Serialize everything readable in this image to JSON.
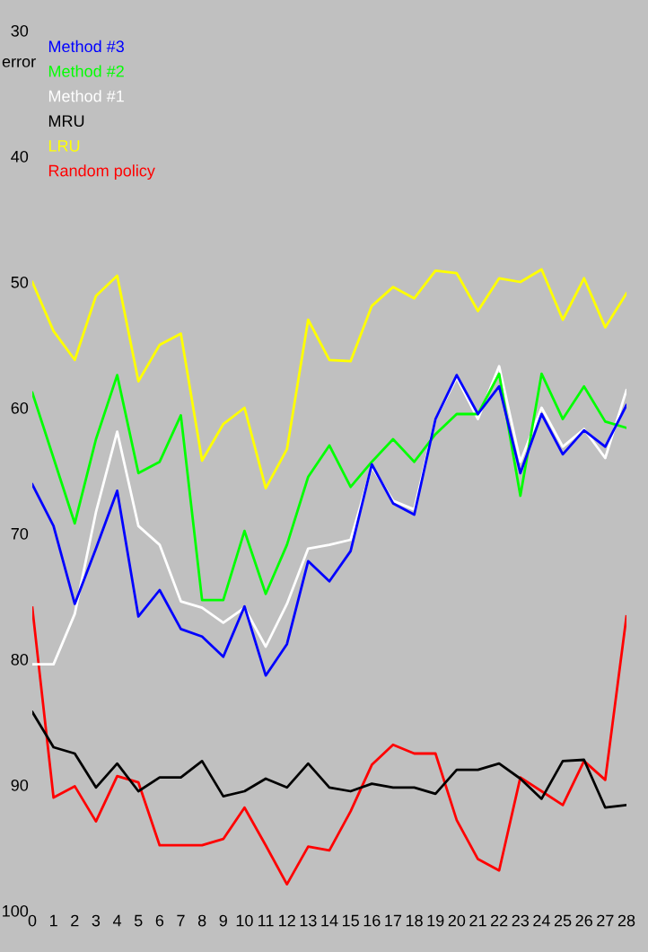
{
  "chart_data": {
    "type": "line",
    "ylabel": "error",
    "x": [
      0,
      1,
      2,
      3,
      4,
      5,
      6,
      7,
      8,
      9,
      10,
      11,
      12,
      13,
      14,
      15,
      16,
      17,
      18,
      19,
      20,
      21,
      22,
      23,
      24,
      25,
      26,
      27,
      28
    ],
    "xlim": [
      0,
      28
    ],
    "xticks": [
      0,
      1,
      2,
      3,
      4,
      5,
      6,
      7,
      8,
      9,
      10,
      11,
      12,
      13,
      14,
      15,
      16,
      17,
      18,
      19,
      20,
      21,
      22,
      23,
      24,
      25,
      26,
      27,
      28
    ],
    "ylim": [
      100,
      30
    ],
    "yticks": [
      30,
      40,
      50,
      60,
      70,
      80,
      90,
      100
    ],
    "grid": false,
    "legend": "top left",
    "marker": "none",
    "line_style": "solid",
    "series": [
      {
        "name": "Method #3",
        "color": "#0000ff",
        "values": [
          66.1,
          69.4,
          75.6,
          71.2,
          66.6,
          76.6,
          74.5,
          77.6,
          78.2,
          79.8,
          75.8,
          81.3,
          78.8,
          72.2,
          73.8,
          71.4,
          64.5,
          67.6,
          68.5,
          60.9,
          57.4,
          60.5,
          58.3,
          65.2,
          60.5,
          63.7,
          61.8,
          63.1,
          59.8
        ]
      },
      {
        "name": "Method #2",
        "color": "#00ff00",
        "values": [
          58.8,
          64,
          69.2,
          62.5,
          57.4,
          65.2,
          64.3,
          60.6,
          75.3,
          75.3,
          69.8,
          74.8,
          70.9,
          65.5,
          63,
          66.3,
          64.3,
          62.5,
          64.3,
          62.1,
          60.5,
          60.5,
          57.3,
          67,
          57.3,
          60.9,
          58.3,
          61.1,
          61.6
        ]
      },
      {
        "name": "Method #1",
        "color": "#ffffff",
        "values": [
          80.4,
          80.4,
          76.4,
          68.3,
          61.9,
          69.4,
          70.9,
          75.4,
          75.9,
          77.1,
          75.9,
          79,
          75.6,
          71.2,
          70.9,
          70.5,
          64.7,
          67.4,
          68.1,
          60.9,
          57.6,
          60.9,
          56.7,
          64.3,
          60,
          63.1,
          61.7,
          64,
          58.6
        ]
      },
      {
        "name": "MRU",
        "color": "#000000",
        "values": [
          84.2,
          87,
          87.5,
          90.2,
          88.3,
          90.5,
          89.4,
          89.4,
          88.1,
          90.9,
          90.5,
          89.5,
          90.2,
          88.3,
          90.2,
          90.5,
          89.9,
          90.2,
          90.2,
          90.7,
          88.8,
          88.8,
          88.3,
          89.5,
          91.1,
          88.1,
          88,
          91.8,
          91.6
        ]
      },
      {
        "name": "LRU",
        "color": "#ffff00",
        "values": [
          50,
          53.9,
          56.2,
          51.1,
          49.5,
          57.9,
          55,
          54.1,
          64.2,
          61.3,
          60,
          66.4,
          63.3,
          53,
          56.2,
          56.3,
          51.9,
          50.4,
          51.3,
          49.1,
          49.3,
          52.3,
          49.7,
          50,
          49,
          53,
          49.7,
          53.6,
          50.9
        ]
      },
      {
        "name": "Random policy",
        "color": "#ff0000",
        "values": [
          75.9,
          91,
          90.1,
          92.9,
          89.3,
          89.8,
          94.8,
          94.8,
          94.8,
          94.3,
          91.8,
          94.8,
          97.9,
          94.9,
          95.2,
          92.1,
          88.4,
          86.8,
          87.5,
          87.5,
          92.8,
          95.9,
          96.8,
          89.4,
          90.5,
          91.6,
          88.1,
          89.6,
          76.6
        ]
      }
    ]
  }
}
